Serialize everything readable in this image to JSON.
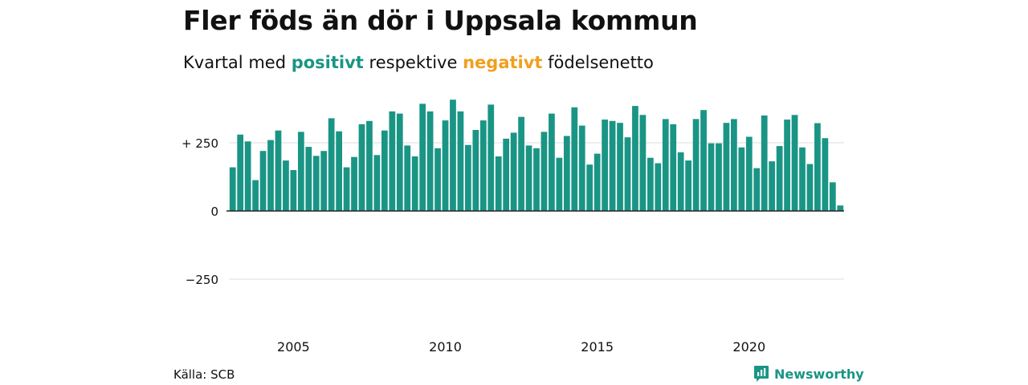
{
  "header": {
    "title": "Fler föds än dör i Uppsala kommun",
    "subtitle_pre": "Kvartal med",
    "subtitle_pos": "positivt",
    "subtitle_mid": "respektive",
    "subtitle_neg": "negativt",
    "subtitle_post": "födelsenetto"
  },
  "footer": {
    "source": "Källa: SCB",
    "brand": "Newsworthy"
  },
  "colors": {
    "positive": "#1a9585",
    "negative": "#f0a01e",
    "grid": "#dddddd",
    "axis": "#222222",
    "brand_icon": "chart-logo-icon"
  },
  "chart_data": {
    "type": "bar",
    "title": "Fler föds än dör i Uppsala kommun",
    "xlabel": "",
    "ylabel": "",
    "x_start": "2003 Q1",
    "x_end": "2023 Q1",
    "xticks": [
      "2005",
      "2010",
      "2015",
      "2020"
    ],
    "yticks": [
      {
        "value": 250,
        "label": "+ 250"
      },
      {
        "value": 0,
        "label": "0"
      },
      {
        "value": -250,
        "label": "−250"
      }
    ],
    "ylim": [
      -390,
      420
    ],
    "grid": true,
    "legend": "none",
    "categories": [
      "2003 Q1",
      "2003 Q2",
      "2003 Q3",
      "2003 Q4",
      "2004 Q1",
      "2004 Q2",
      "2004 Q3",
      "2004 Q4",
      "2005 Q1",
      "2005 Q2",
      "2005 Q3",
      "2005 Q4",
      "2006 Q1",
      "2006 Q2",
      "2006 Q3",
      "2006 Q4",
      "2007 Q1",
      "2007 Q2",
      "2007 Q3",
      "2007 Q4",
      "2008 Q1",
      "2008 Q2",
      "2008 Q3",
      "2008 Q4",
      "2009 Q1",
      "2009 Q2",
      "2009 Q3",
      "2009 Q4",
      "2010 Q1",
      "2010 Q2",
      "2010 Q3",
      "2010 Q4",
      "2011 Q1",
      "2011 Q2",
      "2011 Q3",
      "2011 Q4",
      "2012 Q1",
      "2012 Q2",
      "2012 Q3",
      "2012 Q4",
      "2013 Q1",
      "2013 Q2",
      "2013 Q3",
      "2013 Q4",
      "2014 Q1",
      "2014 Q2",
      "2014 Q3",
      "2014 Q4",
      "2015 Q1",
      "2015 Q2",
      "2015 Q3",
      "2015 Q4",
      "2016 Q1",
      "2016 Q2",
      "2016 Q3",
      "2016 Q4",
      "2017 Q1",
      "2017 Q2",
      "2017 Q3",
      "2017 Q4",
      "2018 Q1",
      "2018 Q2",
      "2018 Q3",
      "2018 Q4",
      "2019 Q1",
      "2019 Q2",
      "2019 Q3",
      "2019 Q4",
      "2020 Q1",
      "2020 Q2",
      "2020 Q3",
      "2020 Q4",
      "2021 Q1",
      "2021 Q2",
      "2021 Q3",
      "2021 Q4",
      "2022 Q1",
      "2022 Q2",
      "2022 Q3",
      "2022 Q4",
      "2023 Q1"
    ],
    "values": [
      160,
      280,
      255,
      113,
      220,
      260,
      295,
      185,
      150,
      290,
      235,
      202,
      220,
      340,
      292,
      160,
      198,
      318,
      330,
      205,
      295,
      365,
      357,
      240,
      200,
      393,
      365,
      230,
      332,
      408,
      365,
      242,
      297,
      332,
      390,
      200,
      265,
      287,
      345,
      240,
      230,
      290,
      357,
      195,
      275,
      380,
      313,
      170,
      210,
      335,
      330,
      323,
      270,
      385,
      352,
      195,
      175,
      337,
      318,
      215,
      185,
      337,
      370,
      248,
      248,
      323,
      337,
      233,
      272,
      157,
      350,
      182,
      238,
      335,
      352,
      233,
      172,
      322,
      267,
      105,
      20
    ]
  }
}
